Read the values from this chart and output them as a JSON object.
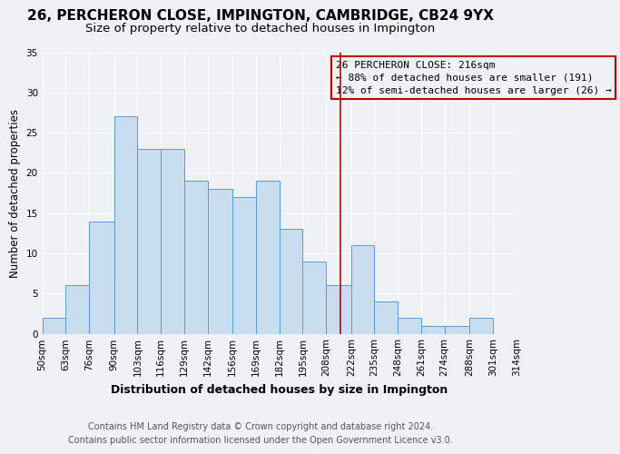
{
  "title": "26, PERCHERON CLOSE, IMPINGTON, CAMBRIDGE, CB24 9YX",
  "subtitle": "Size of property relative to detached houses in Impington",
  "xlabel": "Distribution of detached houses by size in Impington",
  "ylabel": "Number of detached properties",
  "bar_labels": [
    "50sqm",
    "63sqm",
    "76sqm",
    "90sqm",
    "103sqm",
    "116sqm",
    "129sqm",
    "142sqm",
    "156sqm",
    "169sqm",
    "182sqm",
    "195sqm",
    "208sqm",
    "222sqm",
    "235sqm",
    "248sqm",
    "261sqm",
    "274sqm",
    "288sqm",
    "301sqm",
    "314sqm"
  ],
  "bar_values": [
    2,
    6,
    14,
    27,
    23,
    23,
    19,
    18,
    17,
    19,
    13,
    9,
    6,
    11,
    4,
    2,
    1,
    1,
    2,
    0
  ],
  "bar_edges": [
    50,
    63,
    76,
    90,
    103,
    116,
    129,
    142,
    156,
    169,
    182,
    195,
    208,
    222,
    235,
    248,
    261,
    274,
    288,
    301,
    314
  ],
  "bar_color": "#c8ddf0",
  "bar_edgecolor": "#5b9bd5",
  "vline_x": 216,
  "annotation_title": "26 PERCHERON CLOSE: 216sqm",
  "annotation_line1": "← 88% of detached houses are smaller (191)",
  "annotation_line2": "12% of semi-detached houses are larger (26) →",
  "annotation_box_edgecolor": "#cc0000",
  "vline_color": "#cc0000",
  "ylim": [
    0,
    35
  ],
  "yticks": [
    0,
    5,
    10,
    15,
    20,
    25,
    30,
    35
  ],
  "footer1": "Contains HM Land Registry data © Crown copyright and database right 2024.",
  "footer2": "Contains public sector information licensed under the Open Government Licence v3.0.",
  "bg_color": "#eef2f7",
  "grid_color": "#ffffff",
  "title_fontsize": 11,
  "subtitle_fontsize": 9.5,
  "xlabel_fontsize": 9,
  "ylabel_fontsize": 8.5,
  "tick_fontsize": 7.5,
  "annotation_fontsize": 8,
  "footer_fontsize": 7
}
